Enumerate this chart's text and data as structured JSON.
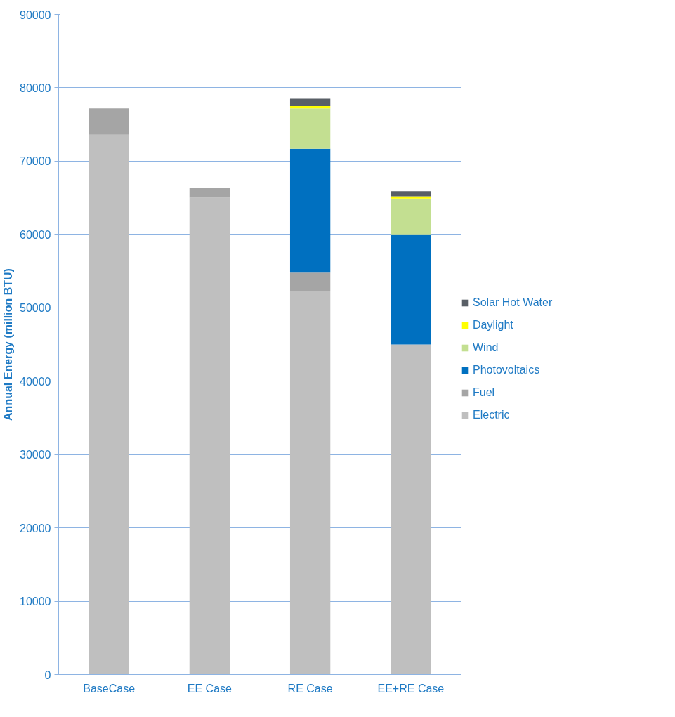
{
  "chart_data": {
    "type": "bar",
    "stacked": true,
    "ylabel": "Annual Energy (million BTU)",
    "categories": [
      "BaseCase",
      "EE Case",
      "RE Case",
      "EE+RE Case"
    ],
    "series": [
      {
        "name": "Electric",
        "color": "#bfbfbf",
        "values": [
          73600,
          65000,
          52300,
          45000
        ]
      },
      {
        "name": "Fuel",
        "color": "#a5a5a5",
        "values": [
          3600,
          1400,
          2500,
          0
        ]
      },
      {
        "name": "Photovoltaics",
        "color": "#0070c0",
        "values": [
          0,
          0,
          16900,
          15000
        ]
      },
      {
        "name": "Wind",
        "color": "#c3df91",
        "values": [
          0,
          0,
          5500,
          4900
        ]
      },
      {
        "name": "Daylight",
        "color": "#ffff00",
        "values": [
          0,
          0,
          300,
          300
        ]
      },
      {
        "name": "Solar Hot Water",
        "color": "#595f66",
        "values": [
          0,
          0,
          1000,
          700
        ]
      }
    ],
    "ylim": [
      0,
      90000
    ],
    "yticks": [
      0,
      10000,
      20000,
      30000,
      40000,
      50000,
      60000,
      70000,
      80000,
      90000
    ],
    "grid": "y",
    "legend": "right"
  }
}
